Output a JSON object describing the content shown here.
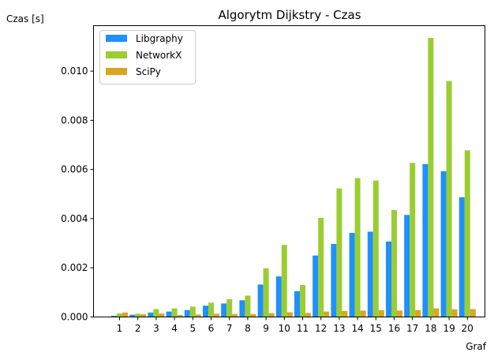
{
  "chart_data": {
    "type": "bar",
    "title": "Algorytm Dijkstry - Czas",
    "xlabel": "Graf",
    "ylabel": "Czas [s]",
    "categories": [
      "1",
      "2",
      "3",
      "4",
      "5",
      "6",
      "7",
      "8",
      "9",
      "10",
      "11",
      "12",
      "13",
      "14",
      "15",
      "16",
      "17",
      "18",
      "19",
      "20"
    ],
    "series": [
      {
        "name": "Libgraphy",
        "color": "#1e90ff",
        "values": [
          5e-05,
          9e-05,
          0.00018,
          0.00022,
          0.00028,
          0.00046,
          0.00055,
          0.00068,
          0.00132,
          0.00165,
          0.00105,
          0.0025,
          0.00297,
          0.00342,
          0.00347,
          0.00307,
          0.00415,
          0.00622,
          0.00593,
          0.00487
        ]
      },
      {
        "name": "NetworkX",
        "color": "#9acd32",
        "values": [
          0.00014,
          0.00013,
          0.00032,
          0.00035,
          0.00042,
          0.00058,
          0.00072,
          0.00087,
          0.00198,
          0.00293,
          0.0013,
          0.00403,
          0.00523,
          0.00565,
          0.00555,
          0.00435,
          0.00627,
          0.01135,
          0.0096,
          0.00678
        ]
      },
      {
        "name": "SciPy",
        "color": "#daa520",
        "values": [
          0.00018,
          0.00011,
          0.00014,
          8e-05,
          0.0001,
          0.00013,
          0.00012,
          0.00012,
          0.00015,
          0.00019,
          0.00016,
          0.00022,
          0.00024,
          0.00026,
          0.00028,
          0.00026,
          0.00028,
          0.00035,
          0.00031,
          0.00032
        ]
      }
    ],
    "yticks": [
      "0.000",
      "0.002",
      "0.004",
      "0.006",
      "0.008",
      "0.010"
    ],
    "ylim": [
      0,
      0.01185
    ],
    "grid": false,
    "legend_position": "top-left"
  }
}
